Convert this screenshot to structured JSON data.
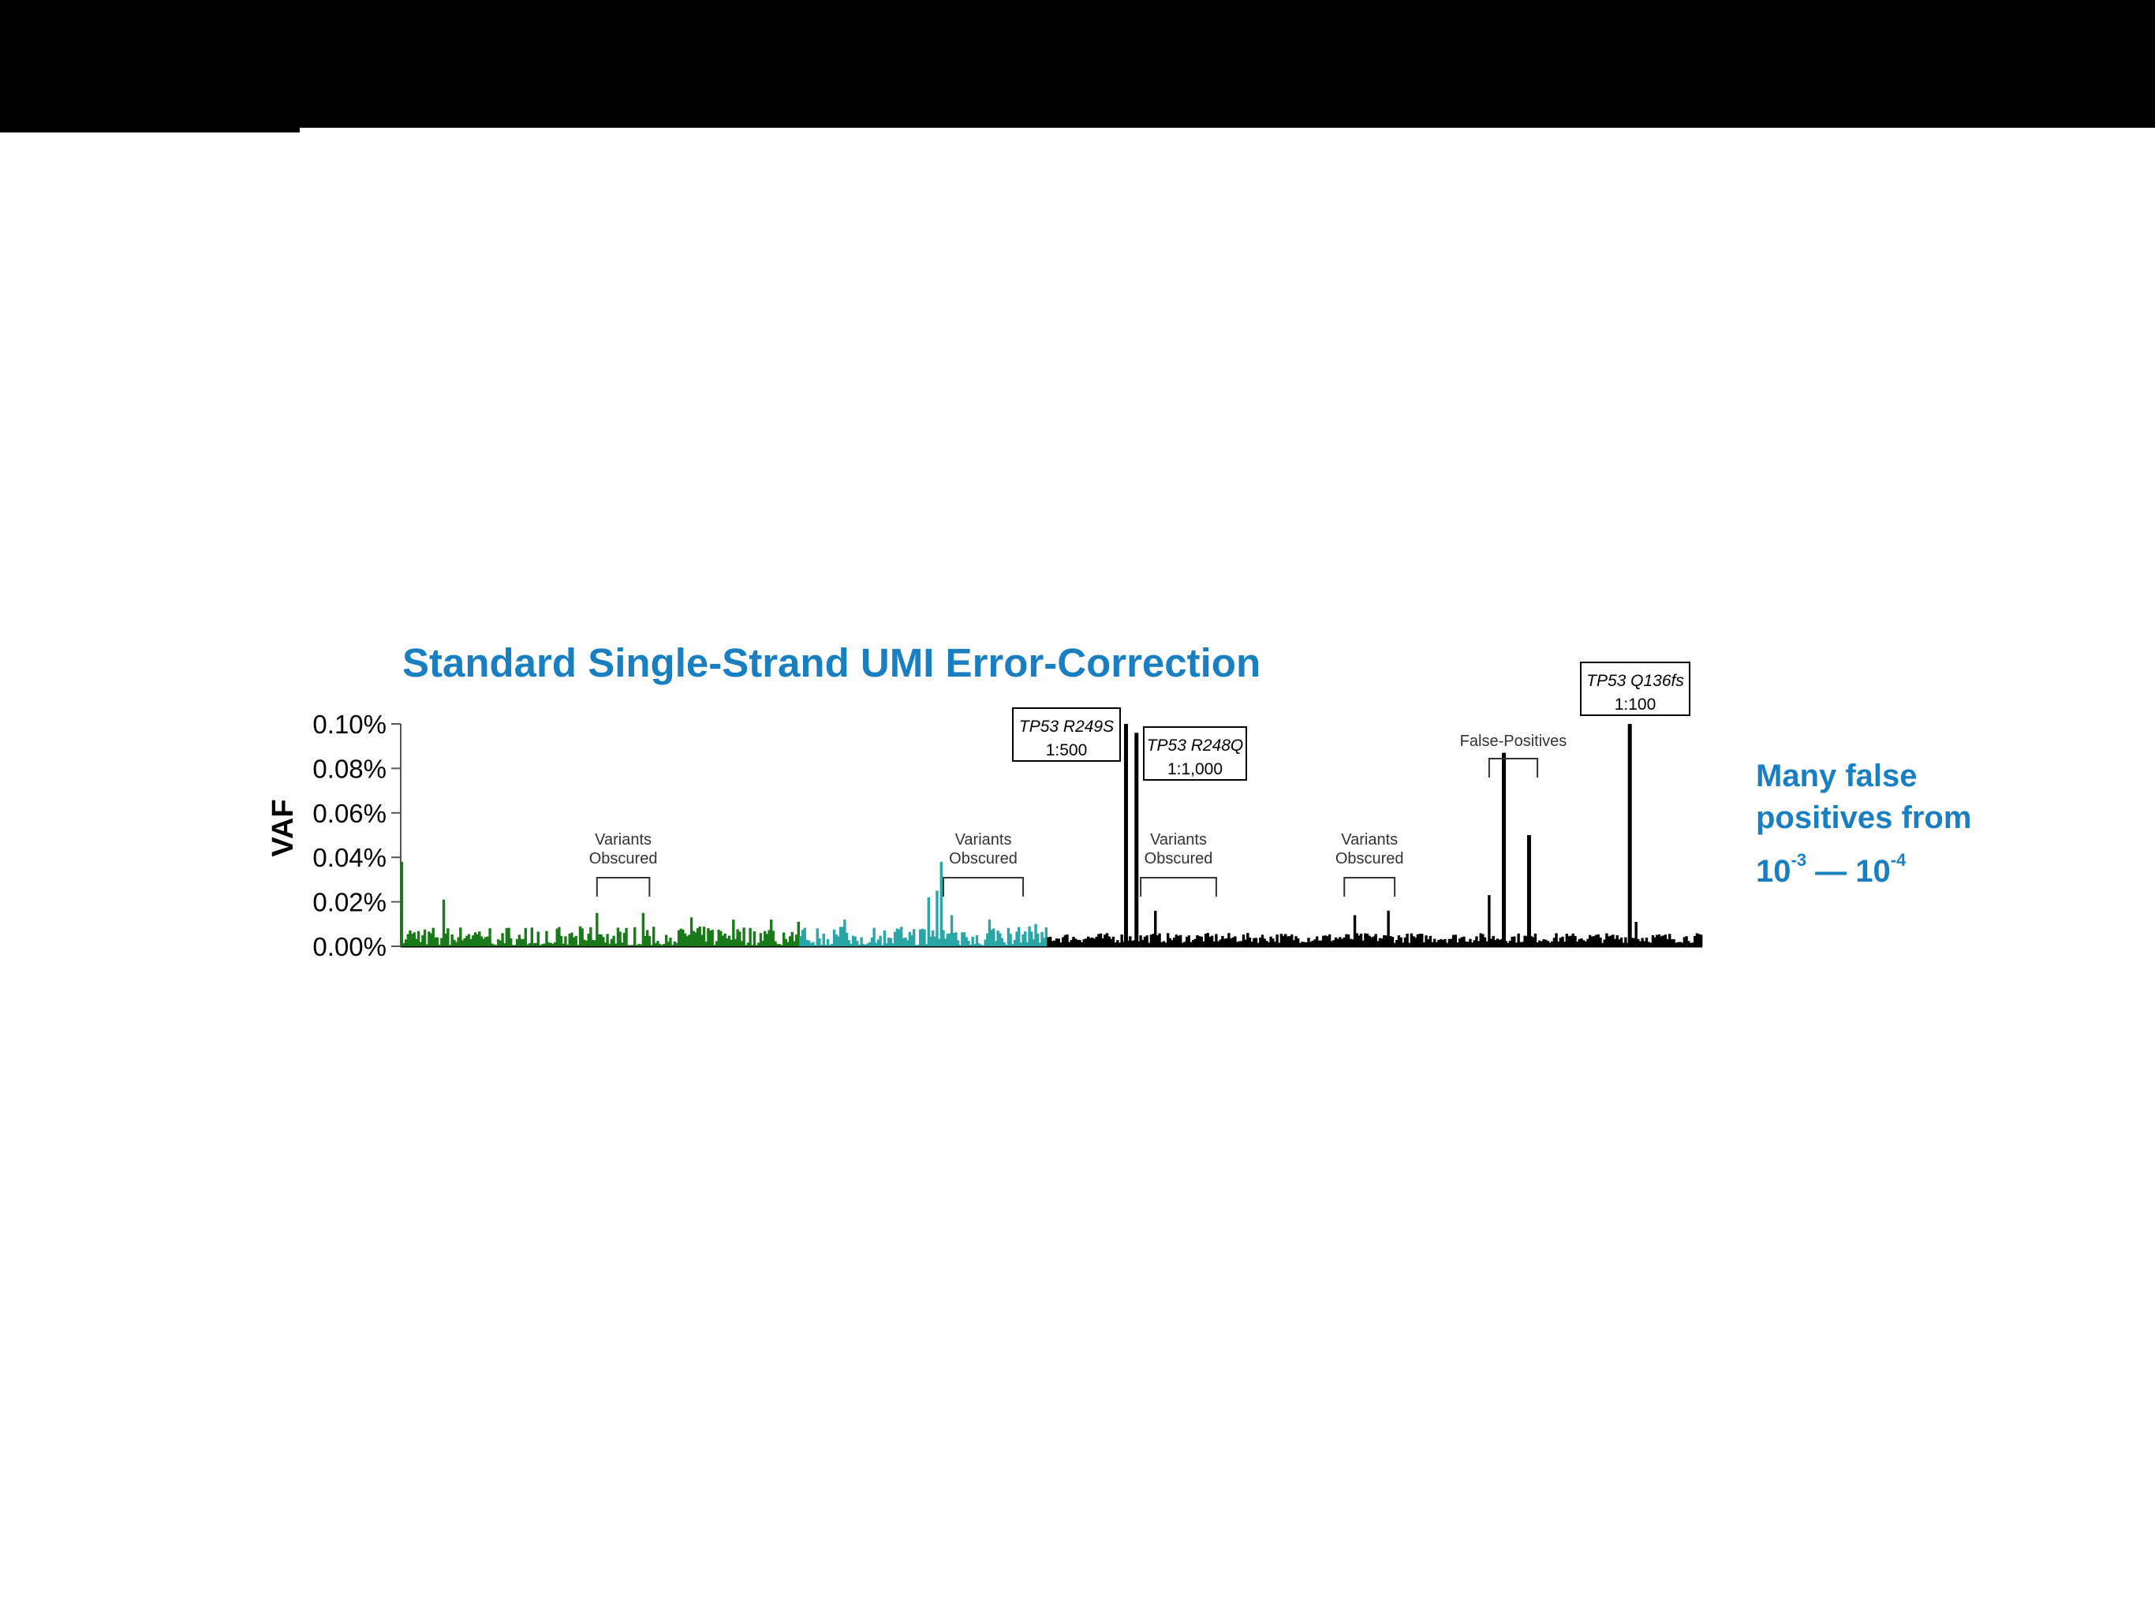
{
  "chart_data": {
    "type": "bar",
    "title": "Standard Single-Strand UMI Error-Correction",
    "ylabel": "VAF",
    "xlabel": "",
    "ylim": [
      0,
      0.1
    ],
    "yticks": [
      "0.10%",
      "0.08%",
      "0.06%",
      "0.04%",
      "0.02%",
      "0.00%"
    ],
    "yticks_values": [
      0.1,
      0.08,
      0.06,
      0.04,
      0.02,
      0.0
    ],
    "n_positions": 620,
    "series": [
      {
        "group": "green",
        "color": "#1a7a1a",
        "range": [
          0,
          190
        ],
        "peaks": [
          [
            0,
            0.038
          ],
          [
            20,
            0.021
          ],
          [
            93,
            0.015
          ],
          [
            115,
            0.015
          ],
          [
            138,
            0.013
          ],
          [
            158,
            0.012
          ],
          [
            176,
            0.012
          ],
          [
            189,
            0.011
          ]
        ]
      },
      {
        "group": "teal",
        "color": "#2aa6a6",
        "range": [
          190,
          308
        ],
        "peaks": [
          [
            211,
            0.012
          ],
          [
            251,
            0.022
          ],
          [
            255,
            0.025
          ],
          [
            257,
            0.038
          ],
          [
            262,
            0.014
          ],
          [
            280,
            0.012
          ],
          [
            302,
            0.01
          ]
        ]
      },
      {
        "group": "black",
        "color": "#000000",
        "range": [
          308,
          620
        ],
        "peaks": [
          [
            345,
            0.1
          ],
          [
            350,
            0.096
          ],
          [
            359,
            0.016
          ],
          [
            454,
            0.014
          ],
          [
            470,
            0.016
          ],
          [
            518,
            0.023
          ],
          [
            525,
            0.087
          ],
          [
            537,
            0.05
          ],
          [
            585,
            0.1
          ],
          [
            588,
            0.011
          ]
        ]
      }
    ],
    "annotations": {
      "r249s": {
        "gene": "TP53 R249S",
        "ratio": "1:500"
      },
      "r248q": {
        "gene": "TP53 R248Q",
        "ratio": "1:1,000"
      },
      "q136fs": {
        "gene": "TP53 Q136fs",
        "ratio": "1:100"
      },
      "obscured": [
        {
          "line1": "Variants",
          "line2": "Obscured",
          "from": 93,
          "to": 118
        },
        {
          "line1": "Variants",
          "line2": "Obscured",
          "from": 258,
          "to": 296
        },
        {
          "line1": "Variants",
          "line2": "Obscured",
          "from": 352,
          "to": 388
        },
        {
          "line1": "Variants",
          "line2": "Obscured",
          "from": 449,
          "to": 473
        }
      ],
      "false_positives": {
        "label": "False-Positives",
        "from": 518,
        "to": 541
      }
    }
  },
  "side_note": {
    "line1": "Many false",
    "line2": "positives from",
    "base1": "10",
    "exp1": "-3",
    "dash": " — ",
    "base2": "10",
    "exp2": "-4"
  },
  "colors": {
    "title": "#1a7fc1",
    "green": "#1a7a1a",
    "teal": "#2aa6a6",
    "black": "#000000"
  }
}
